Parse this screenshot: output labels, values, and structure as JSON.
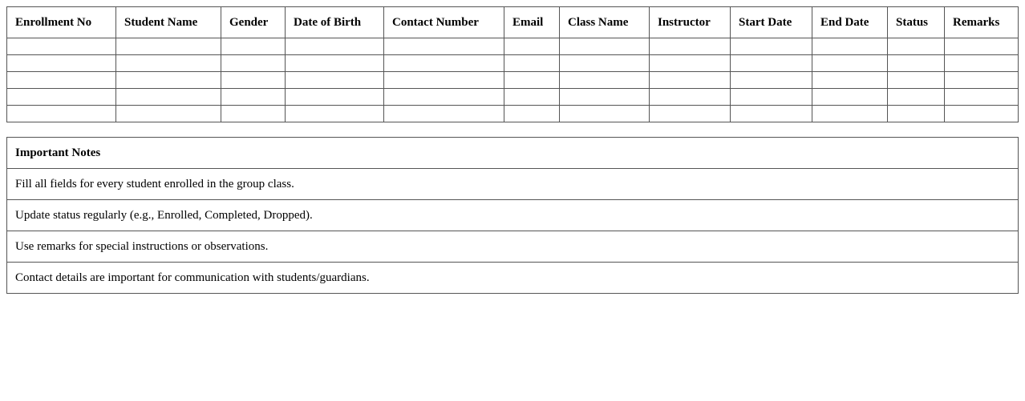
{
  "table": {
    "headers": [
      "Enrollment No",
      "Student Name",
      "Gender",
      "Date of Birth",
      "Contact Number",
      "Email",
      "Class Name",
      "Instructor",
      "Start Date",
      "End Date",
      "Status",
      "Remarks"
    ],
    "empty_rows": 5
  },
  "notes": {
    "title": "Important Notes",
    "items": [
      "Fill all fields for every student enrolled in the group class.",
      "Update status regularly (e.g., Enrolled, Completed, Dropped).",
      "Use remarks for special instructions or observations.",
      "Contact details are important for communication with students/guardians."
    ]
  }
}
